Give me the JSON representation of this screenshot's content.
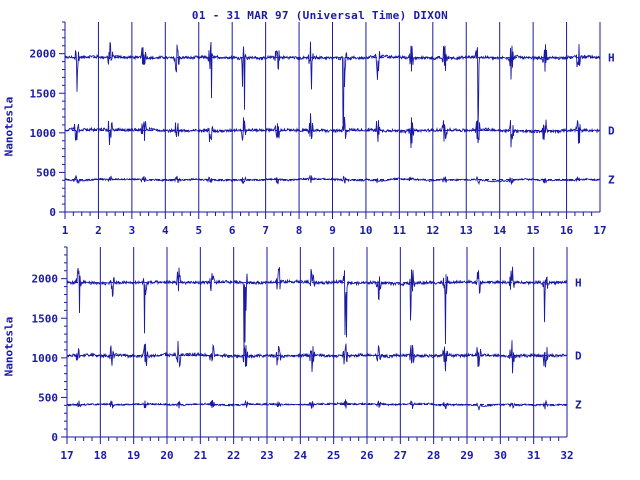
{
  "title": "01 - 31 MAR 97 (Universal Time) DIXON",
  "color": "#1a1aa6",
  "chart_data": [
    {
      "type": "line",
      "panel": "top",
      "ylabel": "Nanotesla",
      "xlim": [
        1,
        17
      ],
      "ylim": [
        0,
        2400
      ],
      "xticks": [
        "1",
        "2",
        "3",
        "4",
        "5",
        "6",
        "7",
        "8",
        "9",
        "10",
        "11",
        "12",
        "13",
        "14",
        "15",
        "16",
        "17"
      ],
      "yticks": [
        "0",
        "500",
        "1000",
        "1500",
        "2000"
      ],
      "grid": "vertical-day-lines",
      "series": [
        {
          "name": "H",
          "baseline": 1950
        },
        {
          "name": "D",
          "baseline": 1030
        },
        {
          "name": "Z",
          "baseline": 410
        }
      ]
    },
    {
      "type": "line",
      "panel": "bottom",
      "ylabel": "Nanotesla",
      "xlim": [
        17,
        32
      ],
      "ylim": [
        0,
        2400
      ],
      "xticks": [
        "17",
        "18",
        "19",
        "20",
        "21",
        "22",
        "23",
        "24",
        "25",
        "26",
        "27",
        "28",
        "29",
        "30",
        "31",
        "32"
      ],
      "yticks": [
        "0",
        "500",
        "1000",
        "1500",
        "2000"
      ],
      "grid": "vertical-day-lines",
      "series": [
        {
          "name": "H",
          "baseline": 1950
        },
        {
          "name": "D",
          "baseline": 1030
        },
        {
          "name": "Z",
          "baseline": 410
        }
      ]
    }
  ]
}
